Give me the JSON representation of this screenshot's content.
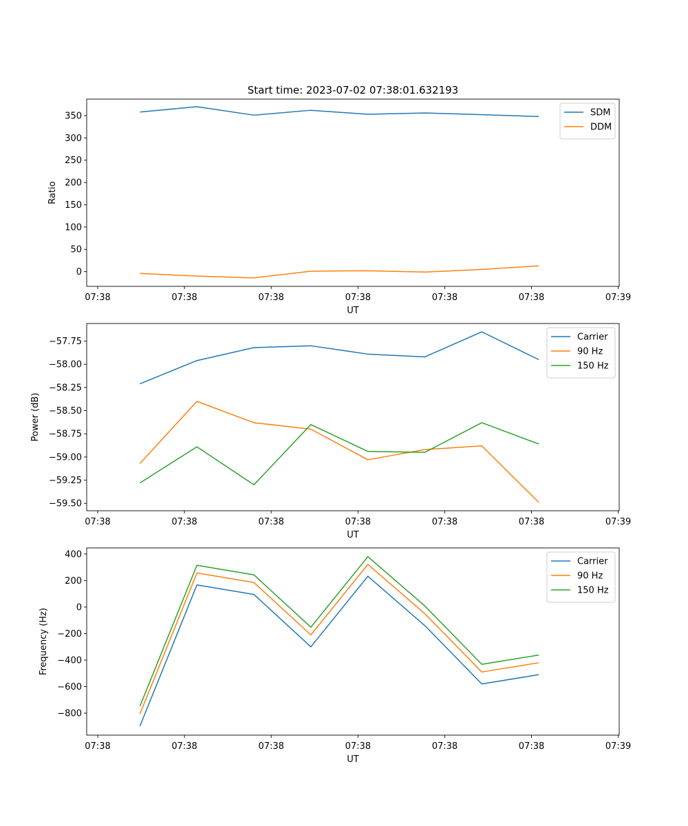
{
  "title": "Start time: 2023-07-02 07:38:01.632193",
  "colors": {
    "blue": "#1f77b4",
    "orange": "#ff7f0e",
    "green": "#2ca02c"
  },
  "chart_data": [
    {
      "type": "line",
      "xlabel": "UT",
      "ylabel": "Ratio",
      "x_ticks": [
        "07:38",
        "07:38",
        "07:38",
        "07:38",
        "07:38",
        "07:38",
        "07:39"
      ],
      "y_ticks": [
        350,
        300,
        250,
        200,
        150,
        100,
        50,
        0
      ],
      "y_tick_labels": [
        "350",
        "300",
        "250",
        "200",
        "150",
        "100",
        "50",
        "0"
      ],
      "ylim": [
        -33,
        387
      ],
      "legend": "top-right",
      "series": [
        {
          "name": "SDM",
          "color": "#1f77b4",
          "values": [
            358,
            370,
            351,
            362,
            353,
            356,
            352,
            348
          ]
        },
        {
          "name": "DDM",
          "color": "#ff7f0e",
          "values": [
            -4,
            -10,
            -14,
            1,
            2,
            -1,
            5,
            13
          ]
        }
      ]
    },
    {
      "type": "line",
      "xlabel": "UT",
      "ylabel": "Power (dB)",
      "x_ticks": [
        "07:38",
        "07:38",
        "07:38",
        "07:38",
        "07:38",
        "07:38",
        "07:39"
      ],
      "y_ticks": [
        -57.75,
        -58.0,
        -58.25,
        -58.5,
        -58.75,
        -59.0,
        -59.25,
        -59.5
      ],
      "y_tick_labels": [
        "−57.75",
        "−58.00",
        "−58.25",
        "−58.50",
        "−58.75",
        "−59.00",
        "−59.25",
        "−59.50"
      ],
      "ylim": [
        -59.58,
        -57.56
      ],
      "legend": "top-right",
      "series": [
        {
          "name": "Carrier",
          "color": "#1f77b4",
          "values": [
            -58.21,
            -57.96,
            -57.82,
            -57.8,
            -57.89,
            -57.92,
            -57.65,
            -57.95
          ]
        },
        {
          "name": "90 Hz",
          "color": "#ff7f0e",
          "values": [
            -59.07,
            -58.4,
            -58.63,
            -58.7,
            -59.03,
            -58.92,
            -58.88,
            -59.49
          ]
        },
        {
          "name": "150 Hz",
          "color": "#2ca02c",
          "values": [
            -59.28,
            -58.89,
            -59.3,
            -58.65,
            -58.94,
            -58.95,
            -58.63,
            -58.86
          ]
        }
      ]
    },
    {
      "type": "line",
      "xlabel": "UT",
      "ylabel": "Frequency (Hz)",
      "x_ticks": [
        "07:38",
        "07:38",
        "07:38",
        "07:38",
        "07:38",
        "07:38",
        "07:39"
      ],
      "y_ticks": [
        400,
        200,
        0,
        -200,
        -400,
        -600,
        -800
      ],
      "y_tick_labels": [
        "400",
        "200",
        "0",
        "−200",
        "−400",
        "−600",
        "−800"
      ],
      "ylim": [
        -966,
        446
      ],
      "legend": "top-right",
      "series": [
        {
          "name": "Carrier",
          "color": "#1f77b4",
          "values": [
            -898,
            167,
            95,
            -300,
            232,
            -140,
            -580,
            -510
          ]
        },
        {
          "name": "90 Hz",
          "color": "#ff7f0e",
          "values": [
            -806,
            257,
            185,
            -210,
            322,
            -50,
            -490,
            -420
          ]
        },
        {
          "name": "150 Hz",
          "color": "#2ca02c",
          "values": [
            -748,
            315,
            243,
            -152,
            380,
            8,
            -432,
            -362
          ]
        }
      ]
    }
  ]
}
